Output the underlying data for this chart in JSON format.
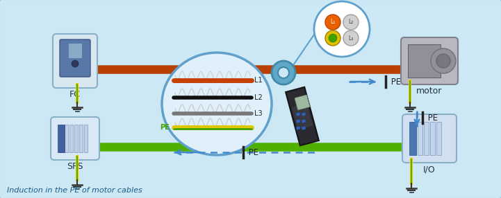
{
  "bg_color": "#cce8f4",
  "title_text": "Induction in the PE of motor cables",
  "title_color": "#1a5a8a",
  "title_fontsize": 8,
  "fc_label": "FC",
  "sps_label": "SPS",
  "motor_label": "motor",
  "io_label": "I/O",
  "l1_label": "L1",
  "l2_label": "L2",
  "l3_label": "L3",
  "pe_label": "PE",
  "ipe_label": " PE",
  "orange_cable_color": "#b84000",
  "green_cable_color": "#50b000",
  "dashed_color": "#4488cc",
  "ellipse_border": "#60a0cc",
  "ellipse_fill": "#e0f0fa"
}
